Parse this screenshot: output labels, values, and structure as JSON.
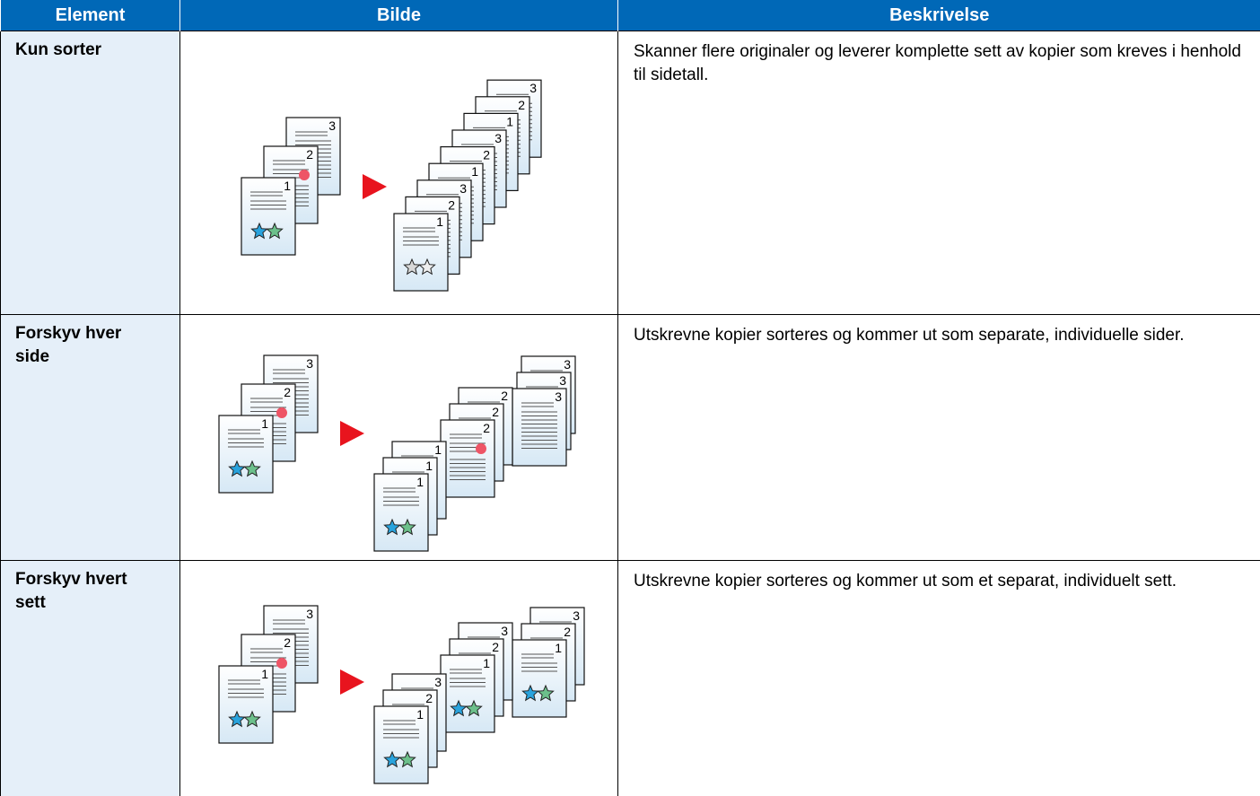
{
  "table": {
    "header": [
      "Element",
      "Bilde",
      "Beskrivelse"
    ],
    "rows": [
      {
        "element": "Kun sorter",
        "description": "Skanner flere originaler og leverer komplette sett av kopier som kreves i henhold til sidetall."
      },
      {
        "element": "Forskyv hver side",
        "description": "Utskrevne kopier sorteres og kommer ut som separate, individuelle sider."
      },
      {
        "element": "Forskyv hvert sett",
        "description": "Utskrevne kopier sorteres og kommer ut som et separat, individuelt sett."
      }
    ]
  },
  "page_numbers": [
    "1",
    "2",
    "3"
  ]
}
